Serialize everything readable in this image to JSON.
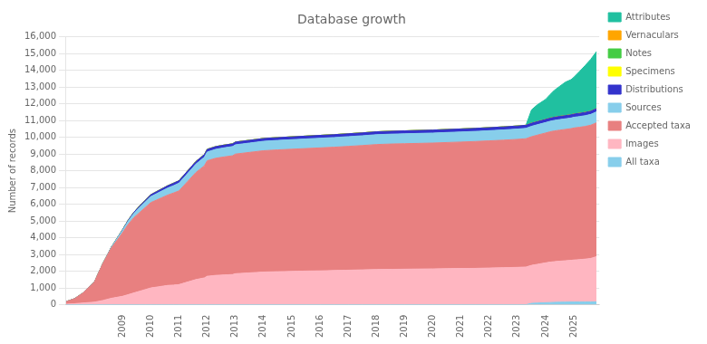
{
  "chart_data": {
    "type": "area",
    "stacked": true,
    "title": "Database growth",
    "ylabel": "Number of records",
    "xlim": [
      2007.0,
      2025.9
    ],
    "xticks": [
      2009,
      2010,
      2011,
      2012,
      2013,
      2014,
      2015,
      2016,
      2017,
      2018,
      2019,
      2020,
      2021,
      2022,
      2023,
      2024,
      2025
    ],
    "ylim": [
      0,
      16000
    ],
    "yticks": [
      0,
      {
        "value": 1000,
        "label": "1,000"
      },
      {
        "value": 2000,
        "label": "2,000"
      },
      {
        "value": 3000,
        "label": "3,000"
      },
      {
        "value": 4000,
        "label": "4,000"
      },
      {
        "value": 5000,
        "label": "5,000"
      },
      {
        "value": 6000,
        "label": "6,000"
      },
      {
        "value": 7000,
        "label": "7,000"
      },
      {
        "value": 8000,
        "label": "8,000"
      },
      {
        "value": 9000,
        "label": "9,000"
      },
      {
        "value": 10000,
        "label": "10,000"
      },
      {
        "value": 11000,
        "label": "11,000"
      },
      {
        "value": 12000,
        "label": "12,000"
      },
      {
        "value": 13000,
        "label": "13,000"
      },
      {
        "value": 14000,
        "label": "14,000"
      },
      {
        "value": 15000,
        "label": "15,000"
      },
      {
        "value": 16000,
        "label": "16,000"
      }
    ],
    "grid": true,
    "legend": "right",
    "x": [
      2007.0,
      2007.3,
      2007.6,
      2008.0,
      2008.3,
      2008.6,
      2009.0,
      2009.2,
      2009.4,
      2009.6,
      2009.8,
      2010.0,
      2010.2,
      2010.4,
      2010.6,
      2010.8,
      2011.0,
      2011.3,
      2011.6,
      2011.9,
      2012.0,
      2012.3,
      2012.6,
      2012.9,
      2013.0,
      2013.5,
      2014.0,
      2014.5,
      2015.0,
      2015.5,
      2016.0,
      2016.5,
      2017.0,
      2017.5,
      2018.0,
      2018.5,
      2019.0,
      2019.5,
      2020.0,
      2020.5,
      2021.0,
      2021.5,
      2022.0,
      2022.5,
      2023.0,
      2023.3,
      2023.5,
      2023.7,
      2024.0,
      2024.15,
      2024.3,
      2024.5,
      2024.7,
      2024.9,
      2025.0,
      2025.2,
      2025.4,
      2025.6,
      2025.8
    ],
    "series": [
      {
        "name": "All taxa",
        "color": "#87ceeb",
        "values": [
          0,
          0,
          0,
          0,
          0,
          0,
          0,
          0,
          0,
          0,
          0,
          0,
          0,
          0,
          0,
          0,
          0,
          0,
          0,
          0,
          0,
          0,
          0,
          0,
          0,
          0,
          0,
          0,
          0,
          0,
          0,
          0,
          0,
          0,
          0,
          0,
          0,
          0,
          0,
          0,
          0,
          0,
          0,
          0,
          0,
          0,
          80,
          100,
          120,
          130,
          140,
          150,
          155,
          160,
          160,
          162,
          164,
          166,
          170
        ]
      },
      {
        "name": "Images",
        "color": "#ffb6c1",
        "values": [
          30,
          60,
          100,
          150,
          250,
          380,
          500,
          600,
          700,
          800,
          900,
          1000,
          1050,
          1100,
          1150,
          1170,
          1200,
          1350,
          1500,
          1600,
          1700,
          1750,
          1780,
          1800,
          1850,
          1900,
          1950,
          1970,
          1990,
          2010,
          2020,
          2040,
          2060,
          2080,
          2100,
          2110,
          2120,
          2130,
          2140,
          2150,
          2160,
          2170,
          2190,
          2210,
          2230,
          2250,
          2270,
          2310,
          2380,
          2410,
          2430,
          2450,
          2470,
          2490,
          2510,
          2530,
          2560,
          2600,
          2700
        ]
      },
      {
        "name": "Accepted taxa",
        "color": "#e88080",
        "values": [
          150,
          300,
          600,
          1200,
          2200,
          3000,
          3800,
          4200,
          4500,
          4700,
          4900,
          5100,
          5200,
          5300,
          5400,
          5500,
          5600,
          6000,
          6400,
          6700,
          6900,
          7000,
          7050,
          7100,
          7150,
          7200,
          7250,
          7280,
          7300,
          7320,
          7350,
          7370,
          7400,
          7430,
          7470,
          7490,
          7500,
          7510,
          7520,
          7540,
          7560,
          7580,
          7600,
          7620,
          7650,
          7670,
          7690,
          7720,
          7760,
          7790,
          7810,
          7830,
          7850,
          7870,
          7890,
          7910,
          7930,
          7960,
          8000
        ]
      },
      {
        "name": "Sources",
        "color": "#87ceeb",
        "values": [
          0,
          0,
          0,
          0,
          0,
          50,
          150,
          200,
          250,
          300,
          330,
          360,
          380,
          400,
          420,
          440,
          460,
          480,
          500,
          515,
          525,
          535,
          545,
          550,
          555,
          560,
          565,
          568,
          572,
          575,
          578,
          580,
          582,
          585,
          588,
          590,
          592,
          595,
          597,
          600,
          602,
          605,
          608,
          612,
          615,
          618,
          620,
          622,
          625,
          628,
          630,
          632,
          634,
          636,
          638,
          640,
          642,
          645,
          650
        ]
      },
      {
        "name": "Distributions",
        "color": "#3333cc",
        "values": [
          0,
          0,
          0,
          0,
          0,
          0,
          30,
          50,
          70,
          90,
          100,
          110,
          120,
          130,
          140,
          145,
          148,
          152,
          155,
          157,
          159,
          161,
          162,
          163,
          164,
          165,
          166,
          167,
          168,
          169,
          170,
          171,
          172,
          173,
          174,
          175,
          176,
          177,
          178,
          179,
          180,
          181,
          182,
          183,
          184,
          185,
          186,
          187,
          188,
          189,
          190,
          191,
          192,
          193,
          194,
          195,
          196,
          197,
          200
        ]
      },
      {
        "name": "Specimens",
        "color": "#ffff00",
        "values": [
          0,
          0,
          0,
          0,
          0,
          0,
          0,
          0,
          0,
          0,
          0,
          0,
          0,
          0,
          0,
          0,
          0,
          0,
          0,
          0,
          0,
          0,
          0,
          0,
          0,
          0,
          0,
          0,
          0,
          0,
          0,
          0,
          0,
          0,
          0,
          0,
          0,
          0,
          0,
          0,
          0,
          0,
          0,
          0,
          0,
          0,
          0,
          0,
          0,
          0,
          0,
          0,
          0,
          0,
          0,
          0,
          0,
          0,
          0
        ]
      },
      {
        "name": "Notes",
        "color": "#44cc44",
        "values": [
          0,
          0,
          0,
          0,
          0,
          0,
          0,
          0,
          0,
          0,
          0,
          0,
          0,
          0,
          0,
          0,
          0,
          0,
          0,
          0,
          0,
          0,
          0,
          0,
          0,
          0,
          0,
          0,
          0,
          0,
          0,
          0,
          0,
          0,
          0,
          0,
          0,
          0,
          0,
          0,
          0,
          0,
          0,
          0,
          0,
          0,
          0,
          0,
          0,
          0,
          0,
          0,
          0,
          0,
          0,
          0,
          0,
          0,
          0
        ]
      },
      {
        "name": "Vernaculars",
        "color": "#ffa500",
        "values": [
          0,
          0,
          0,
          0,
          0,
          0,
          0,
          0,
          0,
          0,
          0,
          0,
          0,
          0,
          0,
          0,
          0,
          0,
          0,
          0,
          0,
          0,
          0,
          0,
          0,
          0,
          0,
          0,
          0,
          0,
          0,
          0,
          0,
          0,
          0,
          0,
          0,
          0,
          0,
          0,
          0,
          0,
          0,
          0,
          0,
          0,
          0,
          0,
          0,
          0,
          0,
          0,
          0,
          0,
          0,
          0,
          0,
          0,
          0
        ]
      },
      {
        "name": "Attributes",
        "color": "#20c0a0",
        "values": [
          0,
          0,
          0,
          0,
          0,
          0,
          0,
          0,
          0,
          0,
          0,
          0,
          0,
          0,
          0,
          0,
          0,
          0,
          0,
          0,
          0,
          0,
          0,
          0,
          0,
          0,
          0,
          0,
          0,
          0,
          0,
          0,
          0,
          0,
          0,
          0,
          0,
          0,
          0,
          0,
          0,
          0,
          0,
          0,
          0,
          0,
          800,
          1000,
          1200,
          1400,
          1600,
          1800,
          2000,
          2100,
          2200,
          2500,
          2800,
          3100,
          3400
        ]
      }
    ]
  }
}
